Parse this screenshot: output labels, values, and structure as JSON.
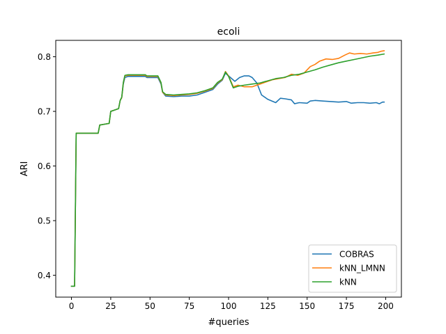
{
  "chart_data": {
    "type": "line",
    "title": "ecoli",
    "xlabel": "#queries",
    "ylabel": "ARI",
    "xlim": [
      -10,
      210
    ],
    "ylim": [
      0.36,
      0.83
    ],
    "xticks": [
      0,
      25,
      50,
      75,
      100,
      125,
      150,
      175,
      200
    ],
    "yticks": [
      0.4,
      0.5,
      0.6,
      0.7,
      0.8
    ],
    "ytick_labels": [
      "0.4",
      "0.5",
      "0.6",
      "0.7",
      "0.8"
    ],
    "grid": false,
    "legend_position": "lower-right",
    "series": [
      {
        "name": "COBRAS",
        "color": "#1f77b4",
        "points": [
          [
            0,
            0.38
          ],
          [
            2,
            0.38
          ],
          [
            3,
            0.66
          ],
          [
            10,
            0.66
          ],
          [
            17,
            0.66
          ],
          [
            18,
            0.675
          ],
          [
            22,
            0.677
          ],
          [
            24,
            0.678
          ],
          [
            25,
            0.7
          ],
          [
            27,
            0.702
          ],
          [
            30,
            0.705
          ],
          [
            31,
            0.72
          ],
          [
            32,
            0.725
          ],
          [
            33,
            0.75
          ],
          [
            34,
            0.762
          ],
          [
            36,
            0.764
          ],
          [
            40,
            0.764
          ],
          [
            47,
            0.764
          ],
          [
            48,
            0.762
          ],
          [
            55,
            0.762
          ],
          [
            57,
            0.75
          ],
          [
            58,
            0.735
          ],
          [
            60,
            0.728
          ],
          [
            65,
            0.727
          ],
          [
            70,
            0.728
          ],
          [
            75,
            0.728
          ],
          [
            80,
            0.73
          ],
          [
            85,
            0.735
          ],
          [
            90,
            0.74
          ],
          [
            93,
            0.75
          ],
          [
            96,
            0.757
          ],
          [
            98,
            0.77
          ],
          [
            100,
            0.765
          ],
          [
            102,
            0.76
          ],
          [
            104,
            0.755
          ],
          [
            107,
            0.762
          ],
          [
            110,
            0.765
          ],
          [
            113,
            0.765
          ],
          [
            115,
            0.762
          ],
          [
            118,
            0.752
          ],
          [
            121,
            0.73
          ],
          [
            125,
            0.722
          ],
          [
            130,
            0.716
          ],
          [
            133,
            0.724
          ],
          [
            136,
            0.723
          ],
          [
            140,
            0.721
          ],
          [
            142,
            0.714
          ],
          [
            145,
            0.716
          ],
          [
            150,
            0.715
          ],
          [
            152,
            0.719
          ],
          [
            155,
            0.72
          ],
          [
            160,
            0.719
          ],
          [
            165,
            0.718
          ],
          [
            170,
            0.717
          ],
          [
            175,
            0.718
          ],
          [
            178,
            0.715
          ],
          [
            182,
            0.716
          ],
          [
            186,
            0.716
          ],
          [
            190,
            0.715
          ],
          [
            194,
            0.716
          ],
          [
            196,
            0.714
          ],
          [
            198,
            0.717
          ],
          [
            199,
            0.717
          ]
        ]
      },
      {
        "name": "kNN_LMNN",
        "color": "#ff7f0e",
        "points": [
          [
            0,
            0.38
          ],
          [
            2,
            0.38
          ],
          [
            3,
            0.66
          ],
          [
            10,
            0.66
          ],
          [
            17,
            0.66
          ],
          [
            18,
            0.675
          ],
          [
            22,
            0.677
          ],
          [
            24,
            0.678
          ],
          [
            25,
            0.7
          ],
          [
            27,
            0.702
          ],
          [
            30,
            0.705
          ],
          [
            31,
            0.72
          ],
          [
            32,
            0.725
          ],
          [
            33,
            0.752
          ],
          [
            34,
            0.765
          ],
          [
            36,
            0.766
          ],
          [
            40,
            0.766
          ],
          [
            47,
            0.766
          ],
          [
            48,
            0.764
          ],
          [
            55,
            0.764
          ],
          [
            57,
            0.752
          ],
          [
            58,
            0.735
          ],
          [
            60,
            0.73
          ],
          [
            65,
            0.729
          ],
          [
            70,
            0.73
          ],
          [
            75,
            0.731
          ],
          [
            80,
            0.733
          ],
          [
            85,
            0.737
          ],
          [
            90,
            0.742
          ],
          [
            93,
            0.752
          ],
          [
            96,
            0.758
          ],
          [
            98,
            0.773
          ],
          [
            100,
            0.765
          ],
          [
            103,
            0.745
          ],
          [
            106,
            0.748
          ],
          [
            110,
            0.745
          ],
          [
            115,
            0.745
          ],
          [
            120,
            0.75
          ],
          [
            125,
            0.755
          ],
          [
            128,
            0.758
          ],
          [
            132,
            0.76
          ],
          [
            136,
            0.762
          ],
          [
            140,
            0.768
          ],
          [
            144,
            0.766
          ],
          [
            148,
            0.77
          ],
          [
            152,
            0.782
          ],
          [
            155,
            0.786
          ],
          [
            158,
            0.792
          ],
          [
            162,
            0.796
          ],
          [
            166,
            0.795
          ],
          [
            170,
            0.797
          ],
          [
            174,
            0.803
          ],
          [
            177,
            0.807
          ],
          [
            180,
            0.805
          ],
          [
            184,
            0.806
          ],
          [
            188,
            0.805
          ],
          [
            192,
            0.807
          ],
          [
            195,
            0.808
          ],
          [
            197,
            0.81
          ],
          [
            199,
            0.811
          ]
        ]
      },
      {
        "name": "kNN",
        "color": "#2ca02c",
        "points": [
          [
            0,
            0.38
          ],
          [
            2,
            0.38
          ],
          [
            3,
            0.66
          ],
          [
            10,
            0.66
          ],
          [
            17,
            0.66
          ],
          [
            18,
            0.675
          ],
          [
            22,
            0.677
          ],
          [
            24,
            0.678
          ],
          [
            25,
            0.7
          ],
          [
            27,
            0.702
          ],
          [
            30,
            0.705
          ],
          [
            31,
            0.72
          ],
          [
            32,
            0.726
          ],
          [
            33,
            0.753
          ],
          [
            34,
            0.766
          ],
          [
            36,
            0.767
          ],
          [
            40,
            0.767
          ],
          [
            47,
            0.767
          ],
          [
            48,
            0.765
          ],
          [
            55,
            0.765
          ],
          [
            57,
            0.753
          ],
          [
            58,
            0.736
          ],
          [
            60,
            0.731
          ],
          [
            65,
            0.73
          ],
          [
            70,
            0.731
          ],
          [
            75,
            0.732
          ],
          [
            80,
            0.734
          ],
          [
            85,
            0.738
          ],
          [
            90,
            0.743
          ],
          [
            93,
            0.753
          ],
          [
            96,
            0.759
          ],
          [
            98,
            0.772
          ],
          [
            100,
            0.764
          ],
          [
            103,
            0.743
          ],
          [
            106,
            0.746
          ],
          [
            110,
            0.748
          ],
          [
            115,
            0.75
          ],
          [
            120,
            0.752
          ],
          [
            125,
            0.756
          ],
          [
            130,
            0.76
          ],
          [
            135,
            0.762
          ],
          [
            140,
            0.766
          ],
          [
            145,
            0.768
          ],
          [
            150,
            0.772
          ],
          [
            155,
            0.776
          ],
          [
            160,
            0.781
          ],
          [
            165,
            0.785
          ],
          [
            170,
            0.789
          ],
          [
            175,
            0.792
          ],
          [
            180,
            0.795
          ],
          [
            185,
            0.798
          ],
          [
            190,
            0.801
          ],
          [
            195,
            0.803
          ],
          [
            199,
            0.805
          ]
        ]
      }
    ]
  }
}
